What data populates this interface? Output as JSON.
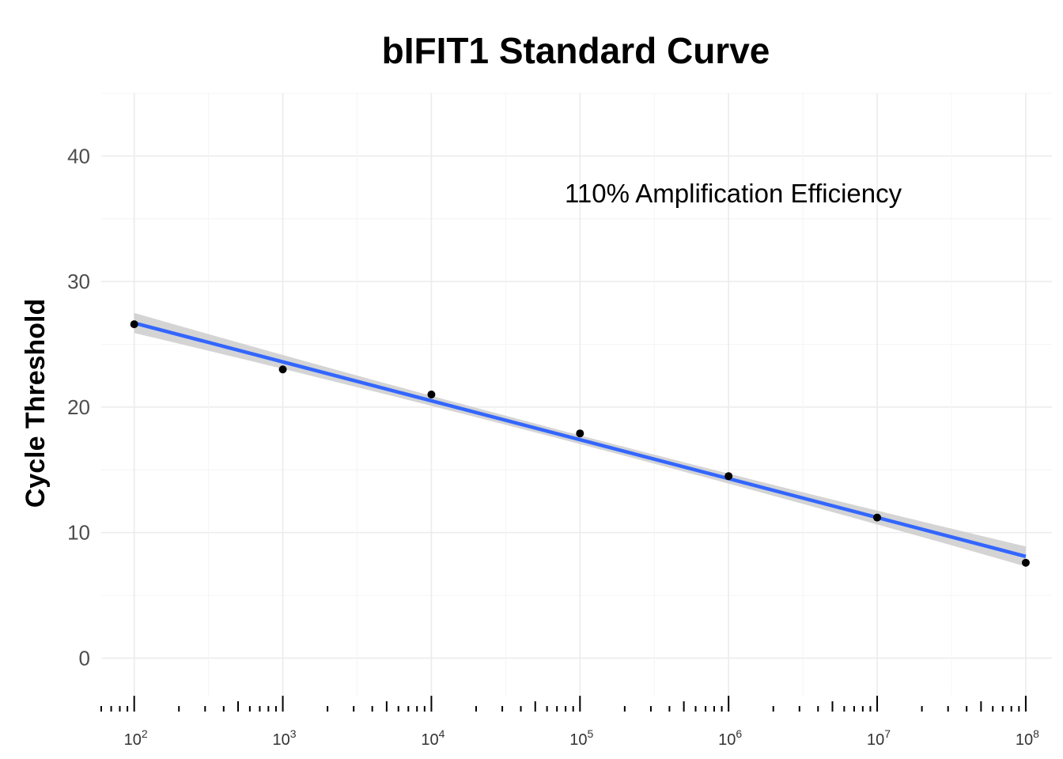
{
  "chart_data": {
    "type": "scatter",
    "title": "bIFIT1 Standard Curve",
    "xlabel": "",
    "ylabel": "Cycle Threshold",
    "x_scale": "log10",
    "xlim": [
      60,
      150000000
    ],
    "ylim": [
      -3,
      45
    ],
    "y_ticks": [
      0,
      10,
      20,
      30,
      40
    ],
    "x_ticks": [
      {
        "value": 100,
        "base": "10",
        "exp": "2"
      },
      {
        "value": 1000,
        "base": "10",
        "exp": "3"
      },
      {
        "value": 10000,
        "base": "10",
        "exp": "4"
      },
      {
        "value": 100000,
        "base": "10",
        "exp": "5"
      },
      {
        "value": 1000000,
        "base": "10",
        "exp": "6"
      },
      {
        "value": 10000000,
        "base": "10",
        "exp": "7"
      },
      {
        "value": 100000000,
        "base": "10",
        "exp": "8"
      }
    ],
    "points": [
      {
        "x": 100,
        "y": 26.6
      },
      {
        "x": 1000,
        "y": 23.0
      },
      {
        "x": 10000,
        "y": 21.0
      },
      {
        "x": 100000,
        "y": 17.9
      },
      {
        "x": 1000000,
        "y": 14.5
      },
      {
        "x": 10000000,
        "y": 11.2
      },
      {
        "x": 100000000,
        "y": 7.6
      }
    ],
    "fit_line": {
      "x_start": 100,
      "y_start": 26.7,
      "x_end": 100000000,
      "y_end": 8.1,
      "color": "#3366ff"
    },
    "confidence_band": {
      "half_width_ends": 0.8,
      "half_width_center": 0.35,
      "color": "#cccccc"
    },
    "annotation": {
      "text": "110% Amplification Efficiency",
      "x": 10000000,
      "y": 37
    },
    "grid": true,
    "log_ticks": true,
    "point_color": "#000000"
  }
}
